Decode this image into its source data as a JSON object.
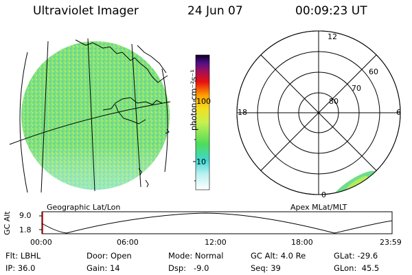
{
  "header": {
    "instrument": "Ultraviolet Imager",
    "date": "24 Jun 07",
    "time": "00:09:23 UT"
  },
  "geo_panel": {
    "label": "Geographic Lat/Lon"
  },
  "colorbar": {
    "unit_label": "photon cm⁻²s⁻¹",
    "ticks": [
      "100",
      "10"
    ]
  },
  "polar_panel": {
    "label": "Apex MLat/MLT",
    "mlt_labels": {
      "top": "12",
      "left": "18",
      "right": "6",
      "bottom": "0"
    },
    "lat_labels": [
      "60",
      "70",
      "80"
    ]
  },
  "altitude_plot": {
    "ylabel": "GC Alt",
    "y_ticks": [
      "9.0",
      "1.8"
    ],
    "x_ticks": [
      "00:00",
      "06:00",
      "12:00",
      "18:00",
      "23:59"
    ]
  },
  "status": {
    "flt": "Flt: LBHL",
    "ip": "IP: 36.0",
    "door": "Door: Open",
    "gain": "Gain: 14",
    "mode": "Mode: Normal",
    "dsp": "Dsp:   -9.0",
    "gcalt": "GC Alt: 4.0 Re",
    "seq": "Seq: 39",
    "glat": "GLat: -29.6",
    "glon": "GLon:  45.5"
  }
}
